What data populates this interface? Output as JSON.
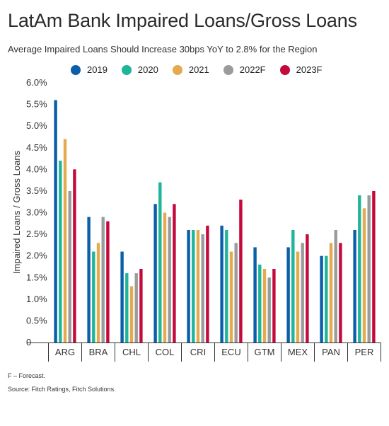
{
  "header": {
    "title": "LatAm Bank Impaired Loans/Gross Loans",
    "subtitle": "Average Impaired Loans Should Increase 30bps YoY to 2.8% for the Region"
  },
  "footer": {
    "note": "F – Forecast.",
    "source": "Source: Fitch Ratings, Fitch Solutions."
  },
  "chart_data": {
    "type": "bar",
    "title": "LatAm Bank Impaired Loans/Gross Loans",
    "subtitle": "Average Impaired Loans Should Increase 30bps YoY to 2.8% for the Region",
    "xlabel": "",
    "ylabel": "Impaired Loans / Gross Loans",
    "ylim": [
      0,
      6.0
    ],
    "yticks": [
      "0",
      "0.5%",
      "1.0%",
      "1.5%",
      "2.0%",
      "2.5%",
      "3.0%",
      "3.5%",
      "4.0%",
      "4.5%",
      "5.0%",
      "5.5%",
      "6.0%"
    ],
    "legend_position": "top",
    "grid": false,
    "categories": [
      "ARG",
      "BRA",
      "CHL",
      "COL",
      "CRI",
      "ECU",
      "GTM",
      "MEX",
      "PAN",
      "PER"
    ],
    "series": [
      {
        "name": "2019",
        "color": "#0b5fa8",
        "values": [
          5.6,
          2.9,
          2.1,
          3.2,
          2.6,
          2.7,
          2.2,
          2.2,
          2.0,
          2.6
        ]
      },
      {
        "name": "2020",
        "color": "#1fb59a",
        "values": [
          4.2,
          2.1,
          1.6,
          3.7,
          2.6,
          2.6,
          1.8,
          2.6,
          2.0,
          3.4
        ]
      },
      {
        "name": "2021",
        "color": "#e3aa4f",
        "values": [
          4.7,
          2.3,
          1.3,
          3.0,
          2.6,
          2.1,
          1.7,
          2.1,
          2.3,
          3.1
        ]
      },
      {
        "name": "2022F",
        "color": "#9b9b9b",
        "values": [
          3.5,
          2.9,
          1.6,
          2.9,
          2.5,
          2.3,
          1.5,
          2.3,
          2.6,
          3.4
        ]
      },
      {
        "name": "2023F",
        "color": "#c4093c",
        "values": [
          4.0,
          2.8,
          1.7,
          3.2,
          2.7,
          3.3,
          1.7,
          2.5,
          2.3,
          3.5
        ]
      }
    ]
  }
}
